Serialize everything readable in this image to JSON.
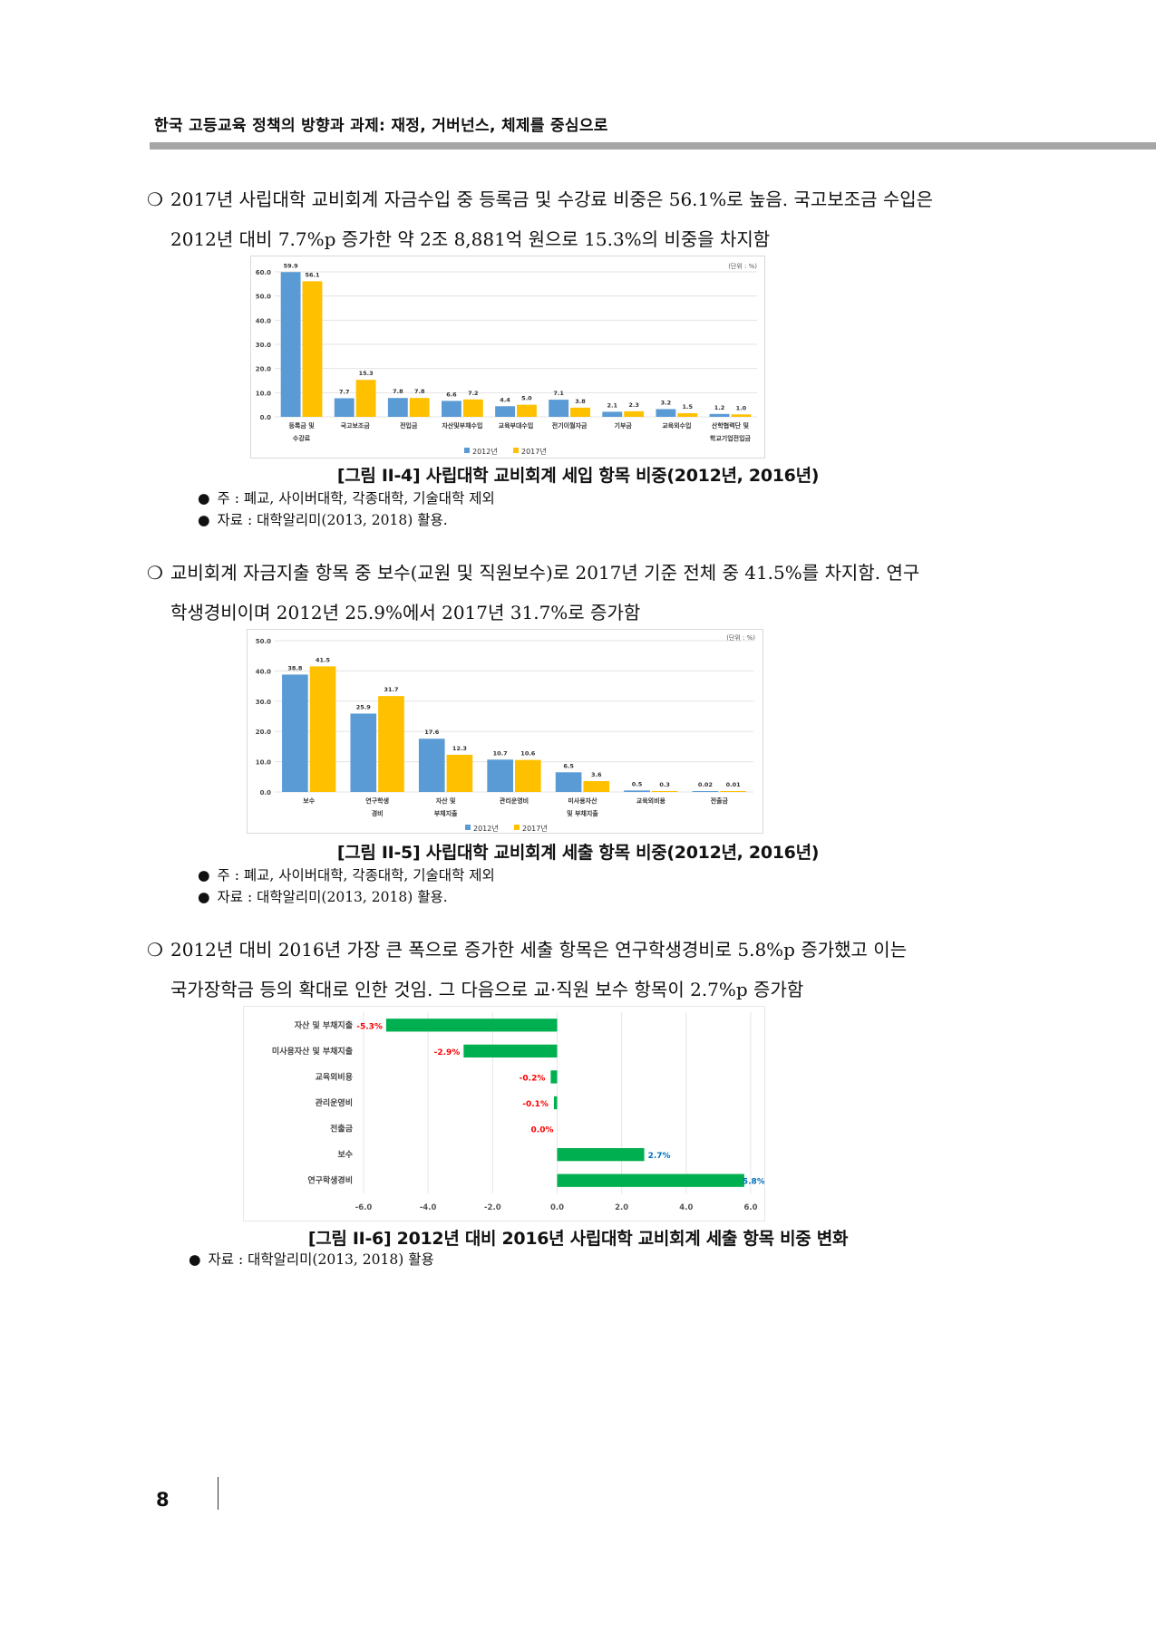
{
  "header": {
    "running_title": "한국 고등교육 정책의 방향과 과제: 재정, 거버넌스, 체제를 중심으로"
  },
  "paragraphs": [
    {
      "marker": "❍",
      "lines": [
        "2017년 사립대학 교비회계 자금수입 중 등록금 및 수강료 비중은 56.1%로 높음. 국고보조금 수입은",
        "2012년 대비 7.7%p 증가한 약 2조 8,881억 원으로 15.3%의 비중을 차지함"
      ]
    },
    {
      "marker": "❍",
      "lines": [
        "교비회계 자금지출 항목 중 보수(교원 및 직원보수)로 2017년 기준 전체 중 41.5%를 차지함. 연구",
        "학생경비이며 2012년 25.9%에서 2017년 31.7%로 증가함"
      ]
    },
    {
      "marker": "❍",
      "lines": [
        "2012년 대비 2016년 가장 큰 폭으로 증가한 세출 항목은 연구학생경비로 5.8%p 증가했고 이는",
        "국가장학금 등의 확대로 인한 것임. 그 다음으로 교·직원 보수 항목이 2.7%p 증가함"
      ]
    }
  ],
  "figures": [
    {
      "caption": "[그림 II-4] 사립대학 교비회계 세입 항목 비중(2012년, 2016년)",
      "notes": [
        {
          "bullet": "●",
          "text": "주 : 폐교, 사이버대학, 각종대학, 기술대학 제외"
        },
        {
          "bullet": "●",
          "text": "자료 : 대학알리미(2013, 2018) 활용."
        }
      ]
    },
    {
      "caption": "[그림 II-5] 사립대학 교비회계 세출 항목 비중(2012년, 2016년)",
      "notes": [
        {
          "bullet": "●",
          "text": "주 : 폐교, 사이버대학, 각종대학, 기술대학 제외"
        },
        {
          "bullet": "●",
          "text": "자료 : 대학알리미(2013, 2018) 활용."
        }
      ]
    },
    {
      "caption": "[그림 II-6] 2012년 대비 2016년 사립대학 교비회계 세출 항목 비중 변화",
      "notes": [
        {
          "bullet": "●",
          "text": "자료 : 대학알리미(2013, 2018) 활용"
        }
      ]
    }
  ],
  "page": {
    "number": "8"
  },
  "chart_data": [
    {
      "type": "bar",
      "unit_label": "(단위 : %)",
      "categories": [
        [
          "등록금 및",
          "수강료"
        ],
        [
          "국고보조금"
        ],
        [
          "전입금"
        ],
        [
          "자산및부채수입"
        ],
        [
          "교육부대수입"
        ],
        [
          "전기이월자금"
        ],
        [
          "기부금"
        ],
        [
          "교육외수입"
        ],
        [
          "산학협력단 및",
          "학교기업전입금"
        ]
      ],
      "series": [
        {
          "name": "2012년",
          "color": "#5b9bd5",
          "values": [
            59.9,
            7.7,
            7.8,
            6.6,
            4.4,
            7.1,
            2.1,
            3.2,
            1.2
          ]
        },
        {
          "name": "2017년",
          "color": "#ffc000",
          "values": [
            56.1,
            15.3,
            7.8,
            7.2,
            5.0,
            3.8,
            2.3,
            1.5,
            1.0
          ]
        }
      ],
      "value_labels": [
        [
          "59.9",
          "7.7",
          "7.8",
          "6.6",
          "4.4",
          "7.1",
          "2.1",
          "3.2",
          "1.2"
        ],
        [
          "56.1",
          "15.3",
          "7.8",
          "7.2",
          "5.0",
          "3.8",
          "2.3",
          "1.5",
          "1.0"
        ]
      ],
      "yticks": [
        "0.0",
        "10.0",
        "20.0",
        "30.0",
        "40.0",
        "50.0",
        "60.0"
      ],
      "ytick_values": [
        0,
        10,
        20,
        30,
        40,
        50,
        60
      ],
      "ylim": [
        0,
        60
      ],
      "grid": true,
      "legend": "bottom"
    },
    {
      "type": "bar",
      "unit_label": "(단위 : %)",
      "categories": [
        [
          "보수"
        ],
        [
          "연구학생",
          "경비"
        ],
        [
          "자산 및",
          "부채지출"
        ],
        [
          "관리운영비"
        ],
        [
          "미사용자산",
          "및 부채지출"
        ],
        [
          "교육외비용"
        ],
        [
          "전출금"
        ]
      ],
      "series": [
        {
          "name": "2012년",
          "color": "#5b9bd5",
          "values": [
            38.8,
            25.9,
            17.6,
            10.7,
            6.5,
            0.5,
            0.02
          ]
        },
        {
          "name": "2017년",
          "color": "#ffc000",
          "values": [
            41.5,
            31.7,
            12.3,
            10.6,
            3.6,
            0.3,
            0.01
          ]
        }
      ],
      "value_labels": [
        [
          "38.8",
          "25.9",
          "17.6",
          "10.7",
          "6.5",
          "0.5",
          "0.02"
        ],
        [
          "41.5",
          "31.7",
          "12.3",
          "10.6",
          "3.6",
          "0.3",
          "0.01"
        ]
      ],
      "yticks": [
        "0.0",
        "10.0",
        "20.0",
        "30.0",
        "40.0",
        "50.0"
      ],
      "ytick_values": [
        0,
        10,
        20,
        30,
        40,
        50
      ],
      "ylim": [
        0,
        50
      ],
      "grid": true,
      "legend": "bottom"
    },
    {
      "type": "bar",
      "orientation": "horizontal",
      "categories": [
        "자산 및 부채지출",
        "미사용자산 및 부채지출",
        "교육외비용",
        "관리운영비",
        "전출금",
        "보수",
        "연구학생경비"
      ],
      "values": [
        -5.3,
        -2.9,
        -0.2,
        -0.1,
        0.0,
        2.7,
        5.8
      ],
      "value_labels": [
        "-5.3%",
        "-2.9%",
        "-0.2%",
        "-0.1%",
        "0.0%",
        "2.7%",
        "5.8%"
      ],
      "xticks": [
        "-6.0",
        "-4.0",
        "-2.0",
        "0.0",
        "2.0",
        "4.0",
        "6.0"
      ],
      "xtick_values": [
        -6,
        -4,
        -2,
        0,
        2,
        4,
        6
      ],
      "xlim": [
        -6,
        6
      ],
      "bar_color": "#00b050",
      "negative_label_color": "#ff0000",
      "positive_label_color": "#0070c0",
      "grid": true
    }
  ]
}
